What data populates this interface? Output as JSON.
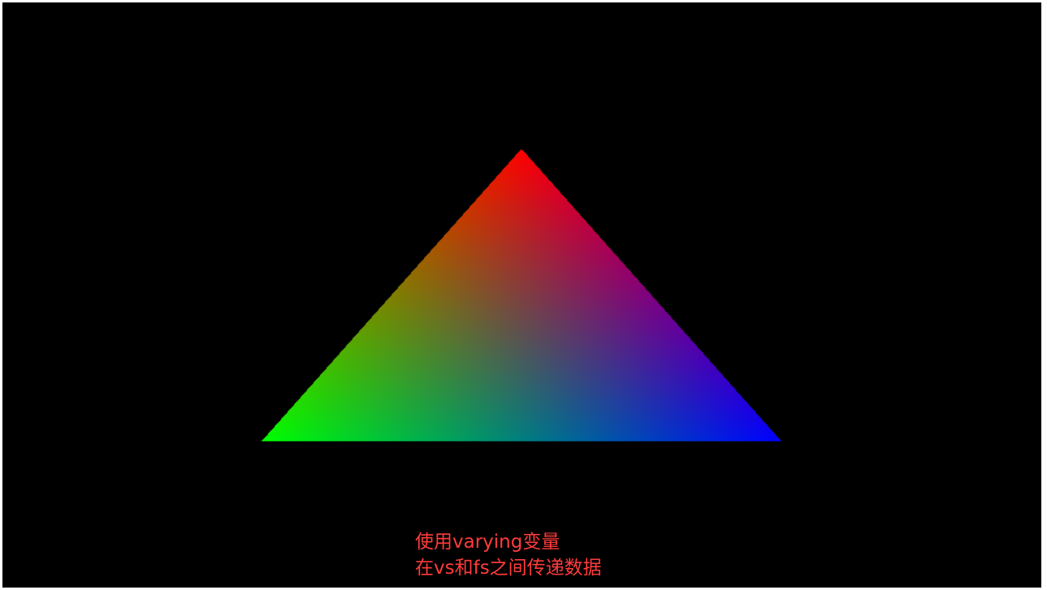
{
  "canvas": {
    "background": "#000000"
  },
  "triangle": {
    "vertex_colors": {
      "top": "#ff0000",
      "bottom_left": "#00ff00",
      "bottom_right": "#0000ff"
    }
  },
  "caption": {
    "line1": "使用varying变量",
    "line2": "在vs和fs之间传递数据",
    "color": "#ff3b3b"
  }
}
